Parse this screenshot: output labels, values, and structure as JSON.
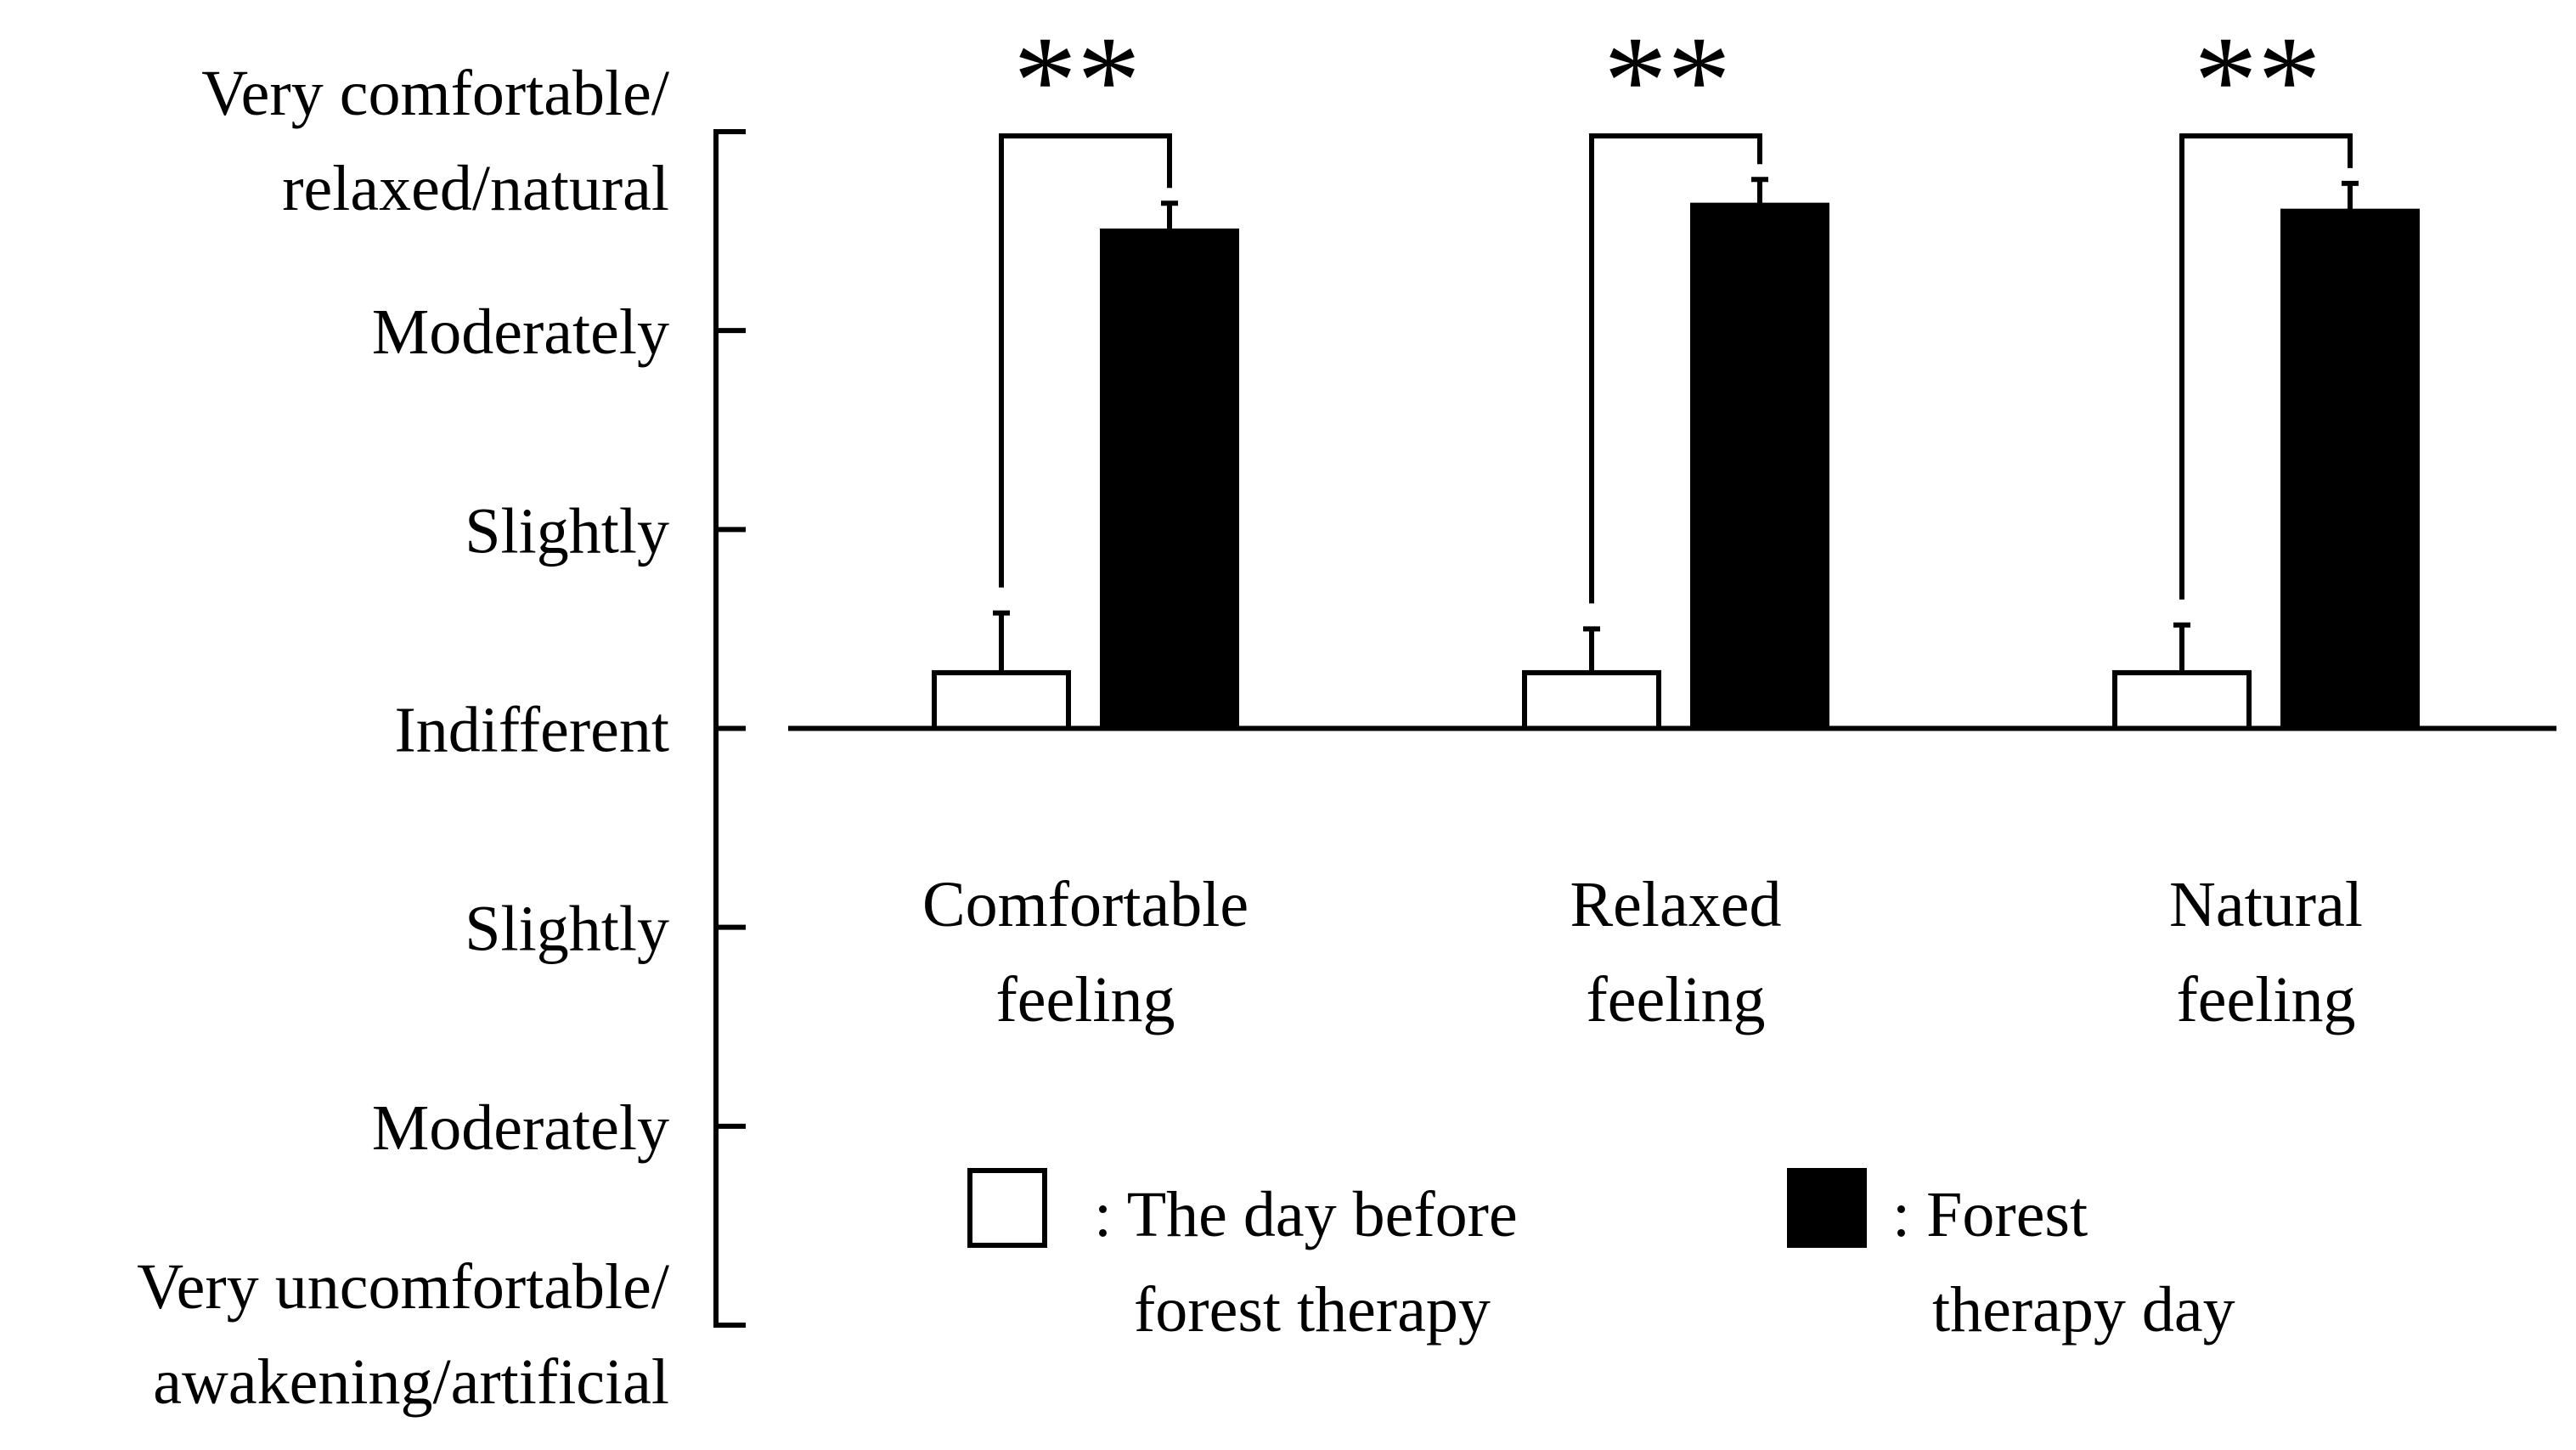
{
  "chart_data": {
    "type": "bar",
    "categories": [
      "Comfortable feeling",
      "Relaxed feeling",
      "Natural feeling"
    ],
    "category_label_lines": [
      [
        "Comfortable",
        "feeling"
      ],
      [
        "Relaxed",
        "feeling"
      ],
      [
        "Natural",
        "feeling"
      ]
    ],
    "series": [
      {
        "name": "The day before forest therapy",
        "legend_lines": [
          ": The day before",
          "forest therapy"
        ],
        "color": "#ffffff",
        "stroke": "#000000",
        "values": [
          0.28,
          0.28,
          0.28
        ],
        "errors": [
          0.3,
          0.22,
          0.24
        ]
      },
      {
        "name": "Forest therapy day",
        "legend_lines": [
          ": Forest",
          "therapy day"
        ],
        "color": "#000000",
        "stroke": "#000000",
        "values": [
          2.5,
          2.63,
          2.6
        ],
        "errors": [
          0.14,
          0.13,
          0.14
        ]
      }
    ],
    "ylim": [
      -3,
      3
    ],
    "y_ticks": [
      3,
      2,
      1,
      0,
      -1,
      -2,
      -3
    ],
    "y_tick_labels": [
      [
        "Very comfortable/",
        "relaxed/natural"
      ],
      [
        "Moderately"
      ],
      [
        "Slightly"
      ],
      [
        "Indifferent"
      ],
      [
        "Slightly"
      ],
      [
        "Moderately"
      ],
      [
        "Very uncomfortable/",
        "awakening/artificial"
      ]
    ],
    "significance": [
      "**",
      "**",
      "**"
    ],
    "legend_position": "bottom",
    "grid": false
  }
}
